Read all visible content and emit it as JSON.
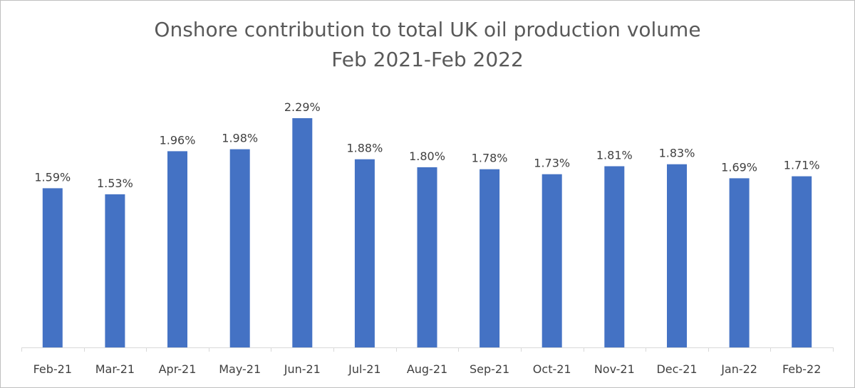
{
  "chart_data": {
    "type": "bar",
    "title": "Onshore contribution to total UK oil production volume",
    "subtitle": "Feb 2021-Feb 2022",
    "xlabel": "",
    "ylabel": "",
    "categories": [
      "Feb-21",
      "Mar-21",
      "Apr-21",
      "May-21",
      "Jun-21",
      "Jul-21",
      "Aug-21",
      "Sep-21",
      "Oct-21",
      "Nov-21",
      "Dec-21",
      "Jan-22",
      "Feb-22"
    ],
    "values": [
      1.59,
      1.53,
      1.96,
      1.98,
      2.29,
      1.88,
      1.8,
      1.78,
      1.73,
      1.81,
      1.83,
      1.69,
      1.71
    ],
    "data_labels": [
      "1.59%",
      "1.53%",
      "1.96%",
      "1.98%",
      "2.29%",
      "1.88%",
      "1.80%",
      "1.78%",
      "1.73%",
      "1.81%",
      "1.83%",
      "1.69%",
      "1.71%"
    ],
    "ylim": [
      0,
      2.29
    ],
    "grid": false,
    "legend": "none",
    "colors": {
      "bar": "#4472C4",
      "axis": "#d9d9d9",
      "text": "#404040",
      "title": "#595959"
    }
  }
}
